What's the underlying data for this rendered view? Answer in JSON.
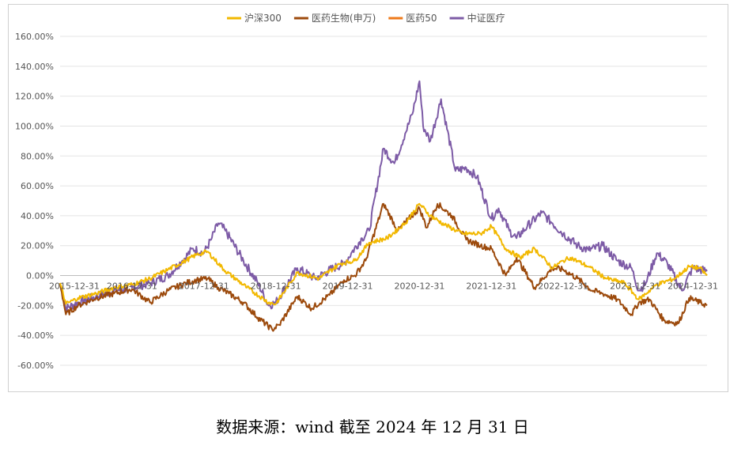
{
  "chart_data": {
    "type": "line",
    "title": "",
    "xlabel": "",
    "ylabel": "",
    "ylim": [
      -60,
      160
    ],
    "y_ticks": [
      "160.00%",
      "140.00%",
      "120.00%",
      "100.00%",
      "80.00%",
      "60.00%",
      "40.00%",
      "20.00%",
      "0.00%",
      "-20.00%",
      "-40.00%",
      "-60.00%"
    ],
    "y_tick_values": [
      160,
      140,
      120,
      100,
      80,
      60,
      40,
      20,
      0,
      -20,
      -40,
      -60
    ],
    "x_ticks": [
      "2015-12-31",
      "2016-12-31",
      "2017-12-31",
      "2018-12-31",
      "2019-12-31",
      "2020-12-31",
      "2021-12-31",
      "2022-12-31",
      "2023-12-31",
      "2024-12-31"
    ],
    "x_tick_values": [
      2016.0,
      2017.0,
      2018.0,
      2019.0,
      2020.0,
      2021.0,
      2022.0,
      2023.0,
      2024.0,
      2025.0
    ],
    "x_range": [
      2016.0,
      2025.0
    ],
    "grid": "horizontal",
    "legend_position": "top-center",
    "series": [
      {
        "name": "沪深300",
        "color": "#f2b800",
        "x": [
          2016.0,
          2016.08,
          2016.25,
          2016.5,
          2016.75,
          2017.0,
          2017.25,
          2017.5,
          2017.75,
          2017.9,
          2018.05,
          2018.3,
          2018.6,
          2018.9,
          2019.0,
          2019.3,
          2019.6,
          2019.9,
          2020.1,
          2020.3,
          2020.55,
          2020.8,
          2021.0,
          2021.15,
          2021.35,
          2021.6,
          2021.85,
          2022.0,
          2022.2,
          2022.4,
          2022.6,
          2022.85,
          2023.0,
          2023.1,
          2023.35,
          2023.6,
          2023.85,
          2024.05,
          2024.3,
          2024.55,
          2024.75,
          2024.9,
          2025.0
        ],
        "values": [
          -5,
          -19,
          -15,
          -12,
          -8,
          -6,
          -2,
          4,
          10,
          14,
          16,
          3,
          -8,
          -18,
          -19,
          2,
          -2,
          8,
          10,
          22,
          25,
          35,
          48,
          40,
          34,
          28,
          28,
          33,
          18,
          12,
          18,
          5,
          10,
          12,
          6,
          -2,
          -5,
          -16,
          -6,
          -2,
          6,
          5,
          0
        ]
      },
      {
        "name": "医药生物(申万)",
        "color": "#9c4a0c",
        "x": [
          2016.0,
          2016.08,
          2016.25,
          2016.5,
          2016.75,
          2017.0,
          2017.25,
          2017.5,
          2017.75,
          2017.9,
          2018.05,
          2018.2,
          2018.35,
          2018.55,
          2018.75,
          2018.95,
          2019.05,
          2019.3,
          2019.5,
          2019.75,
          2019.95,
          2020.1,
          2020.25,
          2020.5,
          2020.7,
          2020.85,
          2021.0,
          2021.1,
          2021.25,
          2021.45,
          2021.65,
          2021.85,
          2022.0,
          2022.2,
          2022.35,
          2022.6,
          2022.85,
          2023.0,
          2023.2,
          2023.4,
          2023.55,
          2023.75,
          2023.95,
          2024.05,
          2024.2,
          2024.4,
          2024.6,
          2024.75,
          2024.9,
          2025.0
        ],
        "values": [
          -5,
          -26,
          -20,
          -15,
          -12,
          -9,
          -18,
          -10,
          -5,
          -3,
          -2,
          -8,
          -12,
          -18,
          -28,
          -36,
          -33,
          -14,
          -22,
          -13,
          -3,
          0,
          10,
          48,
          30,
          38,
          45,
          32,
          48,
          40,
          24,
          20,
          18,
          0,
          12,
          -8,
          5,
          4,
          -2,
          -10,
          -12,
          -16,
          -26,
          -18,
          -16,
          -30,
          -32,
          -15,
          -18,
          -20
        ]
      },
      {
        "name": "医药50",
        "color": "#ee7a1a",
        "x": [],
        "values": []
      },
      {
        "name": "中证医疗",
        "color": "#7d5ba6",
        "x": [
          2016.0,
          2016.08,
          2016.25,
          2016.5,
          2016.75,
          2017.0,
          2017.25,
          2017.5,
          2017.7,
          2017.85,
          2018.0,
          2018.1,
          2018.2,
          2018.3,
          2018.55,
          2018.75,
          2018.9,
          2019.0,
          2019.3,
          2019.55,
          2019.8,
          2019.95,
          2020.05,
          2020.2,
          2020.3,
          2020.5,
          2020.65,
          2020.8,
          2020.9,
          2021.0,
          2021.05,
          2021.15,
          2021.3,
          2021.5,
          2021.65,
          2021.8,
          2022.0,
          2022.1,
          2022.25,
          2022.35,
          2022.5,
          2022.7,
          2022.85,
          2023.0,
          2023.2,
          2023.35,
          2023.55,
          2023.75,
          2023.95,
          2024.05,
          2024.15,
          2024.3,
          2024.45,
          2024.65,
          2024.8,
          2025.0
        ],
        "values": [
          -5,
          -22,
          -18,
          -14,
          -10,
          -8,
          -5,
          0,
          10,
          18,
          15,
          24,
          35,
          30,
          10,
          -5,
          -20,
          -18,
          5,
          -2,
          5,
          8,
          15,
          25,
          30,
          85,
          75,
          95,
          108,
          130,
          100,
          90,
          118,
          70,
          72,
          66,
          38,
          45,
          30,
          25,
          33,
          42,
          35,
          28,
          20,
          17,
          20,
          10,
          5,
          -10,
          -5,
          15,
          8,
          -10,
          5,
          3
        ]
      }
    ]
  },
  "footnote": "数据来源：wind   截至 2024 年 12 月 31 日"
}
